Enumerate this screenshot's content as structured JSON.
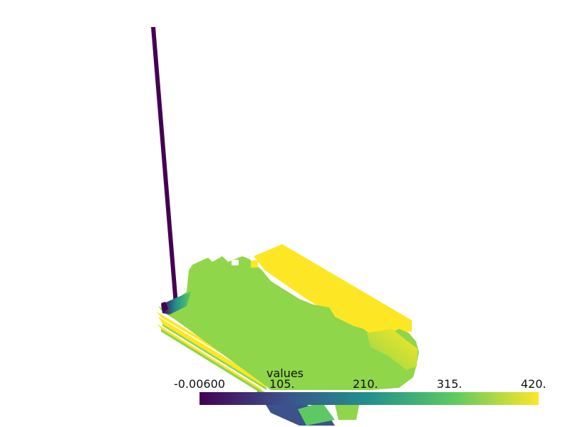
{
  "scalar_bar": {
    "title": "values",
    "range": [
      -0.006,
      420
    ],
    "tick_labels": [
      "-0.00600",
      "105.",
      "210.",
      "315.",
      "420."
    ],
    "colormap": "viridis",
    "gradient_stops": [
      "#440154",
      "#3b528b",
      "#21918c",
      "#5ec962",
      "#fde725"
    ]
  },
  "mesh": {
    "colors": {
      "low": "#440154",
      "mid_low": "#3b528b",
      "mid": "#21918c",
      "green": "#8fd64a",
      "yellow": "#fde725"
    }
  }
}
